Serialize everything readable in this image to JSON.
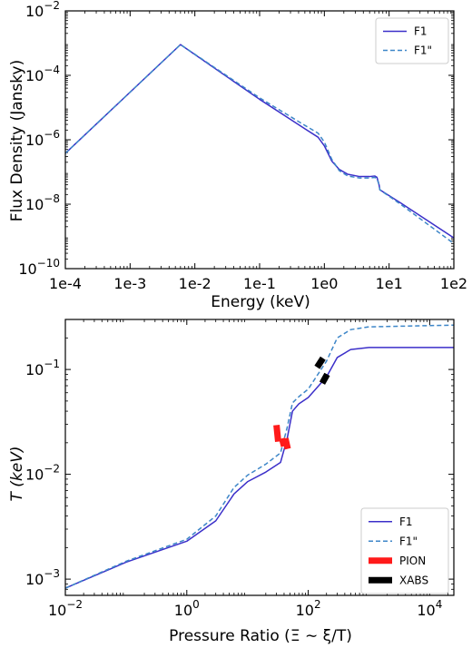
{
  "chart_data": [
    {
      "type": "line",
      "xlabel": "Energy (keV)",
      "ylabel": "Flux Density (Jansky)",
      "xscale": "log",
      "yscale": "log",
      "xlim": [
        0.0001,
        100
      ],
      "ylim": [
        1e-10,
        0.01
      ],
      "x_ticks": [
        {
          "v": 0.0001,
          "label": "1e-4"
        },
        {
          "v": 0.001,
          "label": "1e-3"
        },
        {
          "v": 0.01,
          "label": "1e-2"
        },
        {
          "v": 0.1,
          "label": "1e-1"
        },
        {
          "v": 1,
          "label": "1e0"
        },
        {
          "v": 10,
          "label": "1e1"
        },
        {
          "v": 100,
          "label": "1e2"
        }
      ],
      "y_ticks": [
        {
          "v": 1e-10,
          "base": "10",
          "exp": "−10"
        },
        {
          "v": 1e-08,
          "base": "10",
          "exp": "−8"
        },
        {
          "v": 1e-06,
          "base": "10",
          "exp": "−6"
        },
        {
          "v": 0.0001,
          "base": "10",
          "exp": "−4"
        },
        {
          "v": 0.01,
          "base": "10",
          "exp": "−2"
        }
      ],
      "legend_position": "top-right",
      "series": [
        {
          "name": "F1",
          "style": "solid",
          "color": "#3b2fc9",
          "x": [
            0.0001,
            0.006,
            0.1,
            0.5,
            0.8,
            1.0,
            1.3,
            1.7,
            2.3,
            3.5,
            5.0,
            6.0,
            6.5,
            7.0,
            7.2,
            15,
            100
          ],
          "y": [
            3.8e-07,
            0.0009,
            1.8e-05,
            2.2e-06,
            1.2e-06,
            6.5e-07,
            2.2e-07,
            1.2e-07,
            8.5e-08,
            7.2e-08,
            7.2e-08,
            7.5e-08,
            6.8e-08,
            4e-08,
            2.8e-08,
            1.1e-08,
            9e-10
          ]
        },
        {
          "name": "F1\"",
          "style": "dashed",
          "color": "#3d86c8",
          "x": [
            0.0001,
            0.006,
            0.1,
            0.5,
            0.8,
            1.0,
            1.3,
            1.7,
            2.3,
            3.5,
            5.0,
            6.0,
            6.5,
            7.0,
            7.2,
            15,
            100
          ],
          "y": [
            3.8e-07,
            0.0009,
            2e-05,
            2.8e-06,
            1.6e-06,
            8.5e-07,
            2.5e-07,
            1.1e-07,
            7.5e-08,
            6.5e-08,
            6.5e-08,
            6.8e-08,
            6.2e-08,
            4e-08,
            2.8e-08,
            1e-08,
            6e-10
          ]
        }
      ]
    },
    {
      "type": "line",
      "xlabel": "Pressure Ratio (Ξ ∼ ξ/T)",
      "ylabel": "T (keV)",
      "xscale": "log",
      "yscale": "log",
      "xlim": [
        0.01,
        25000
      ],
      "ylim": [
        0.0007,
        0.3
      ],
      "x_ticks": [
        {
          "v": 0.01,
          "base": "10",
          "exp": "−2"
        },
        {
          "v": 1,
          "base": "10",
          "exp": "0"
        },
        {
          "v": 100,
          "base": "10",
          "exp": "2"
        },
        {
          "v": 10000,
          "base": "10",
          "exp": "4"
        }
      ],
      "y_ticks": [
        {
          "v": 0.001,
          "base": "10",
          "exp": "−3"
        },
        {
          "v": 0.01,
          "base": "10",
          "exp": "−2"
        },
        {
          "v": 0.1,
          "base": "10",
          "exp": "−1"
        }
      ],
      "legend_position": "bottom-right",
      "series": [
        {
          "name": "F1",
          "style": "solid",
          "color": "#3b2fc9",
          "x": [
            0.01,
            0.1,
            1,
            3,
            6,
            10,
            20,
            35,
            45,
            55,
            70,
            100,
            200,
            300,
            500,
            1000,
            25000
          ],
          "y": [
            0.00082,
            0.00145,
            0.0023,
            0.0036,
            0.0065,
            0.0085,
            0.0105,
            0.013,
            0.022,
            0.04,
            0.047,
            0.054,
            0.085,
            0.13,
            0.155,
            0.162,
            0.162
          ]
        },
        {
          "name": "F1\"",
          "style": "dashed",
          "color": "#3d86c8",
          "x": [
            0.01,
            0.1,
            1,
            3,
            6,
            10,
            20,
            35,
            45,
            55,
            70,
            100,
            200,
            300,
            500,
            1000,
            25000
          ],
          "y": [
            0.00082,
            0.00148,
            0.0024,
            0.004,
            0.0075,
            0.0098,
            0.0125,
            0.016,
            0.028,
            0.048,
            0.055,
            0.065,
            0.12,
            0.2,
            0.24,
            0.255,
            0.265
          ]
        },
        {
          "name": "PION",
          "style": "thick",
          "color": "#ff1a1a",
          "segments": [
            {
              "x": [
                30,
                32
              ],
              "y": [
                0.0295,
                0.0205
              ]
            },
            {
              "x": [
                37,
                40
              ],
              "y": [
                0.022,
                0.0185
              ]
            },
            {
              "x": [
                42,
                46
              ],
              "y": [
                0.022,
                0.0175
              ]
            }
          ]
        },
        {
          "name": "XABS",
          "style": "thick",
          "color": "#000000",
          "segments": [
            {
              "x": [
                140,
                175
              ],
              "y": [
                0.105,
                0.128
              ]
            },
            {
              "x": [
                170,
                205
              ],
              "y": [
                0.074,
                0.09
              ]
            }
          ]
        }
      ]
    }
  ]
}
